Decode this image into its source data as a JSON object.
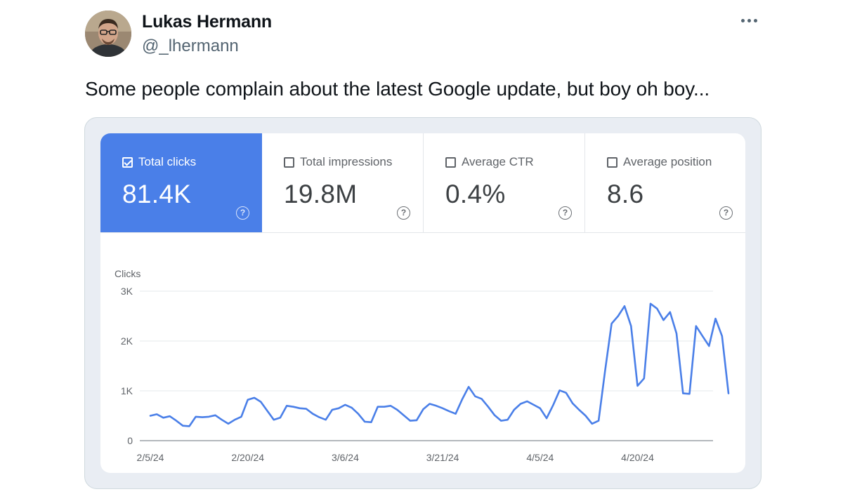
{
  "tweet": {
    "author_name": "Lukas Hermann",
    "author_handle": "@_lhermann",
    "text": "Some people complain about the latest Google update, but boy oh boy...",
    "more_icon": "more-horizontal-icon"
  },
  "metrics": [
    {
      "label": "Total clicks",
      "value": "81.4K",
      "checked": true
    },
    {
      "label": "Total impressions",
      "value": "19.8M",
      "checked": false
    },
    {
      "label": "Average CTR",
      "value": "0.4%",
      "checked": false
    },
    {
      "label": "Average position",
      "value": "8.6",
      "checked": false
    }
  ],
  "help_glyph": "?",
  "colors": {
    "accent": "#4a7fe8",
    "line": "#4a7fe8",
    "text": "#0f1419",
    "muted": "#536471"
  },
  "chart_data": {
    "type": "line",
    "ylabel": "Clicks",
    "ylim": [
      0,
      3000
    ],
    "yticks": [
      {
        "v": 0,
        "label": "0"
      },
      {
        "v": 1000,
        "label": "1K"
      },
      {
        "v": 2000,
        "label": "2K"
      },
      {
        "v": 3000,
        "label": "3K"
      }
    ],
    "xticks": [
      {
        "i": 0,
        "label": "2/5/24"
      },
      {
        "i": 15,
        "label": "2/20/24"
      },
      {
        "i": 30,
        "label": "3/6/24"
      },
      {
        "i": 45,
        "label": "3/21/24"
      },
      {
        "i": 60,
        "label": "4/5/24"
      },
      {
        "i": 75,
        "label": "4/20/24"
      }
    ],
    "grid": true,
    "series": [
      {
        "values": [
          500,
          530,
          460,
          490,
          400,
          300,
          290,
          480,
          470,
          480,
          510,
          420,
          340,
          420,
          480,
          820,
          860,
          780,
          600,
          420,
          460,
          700,
          680,
          650,
          640,
          540,
          470,
          420,
          620,
          650,
          720,
          660,
          540,
          380,
          370,
          680,
          680,
          700,
          620,
          510,
          400,
          410,
          630,
          740,
          700,
          650,
          590,
          540,
          830,
          1080,
          890,
          840,
          680,
          510,
          400,
          420,
          620,
          740,
          790,
          720,
          650,
          450,
          710,
          1010,
          960,
          750,
          620,
          500,
          340,
          400,
          1400,
          2350,
          2500,
          2700,
          2300,
          1100,
          1250,
          2750,
          2650,
          2420,
          2580,
          2150,
          950,
          940,
          2300,
          2100,
          1900,
          2450,
          2100,
          950
        ]
      }
    ]
  }
}
